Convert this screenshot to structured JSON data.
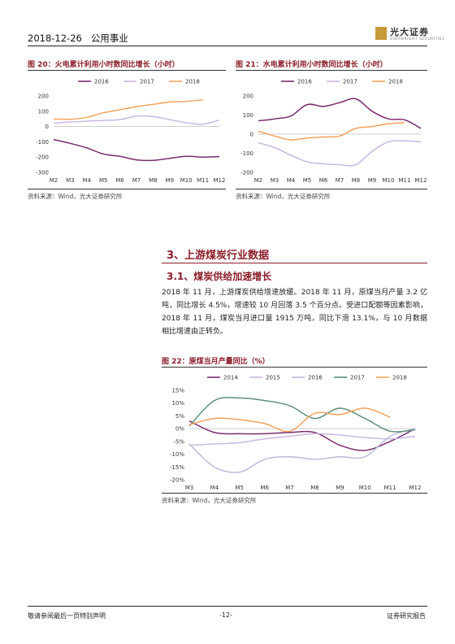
{
  "header": {
    "date": "2018-12-26",
    "sector": "公用事业",
    "logo_text": "光大证券",
    "logo_sub": "EVERBRIGHT SECURITIES"
  },
  "fig20": {
    "title": "图 20：火电累计利用小时数同比增长（小时）",
    "source": "资料来源：Wind，光大证券研究所"
  },
  "fig21": {
    "title": "图 21：水电累计利用小时数同比增长（小时）",
    "source": "资料来源：Wind，光大证券研究所"
  },
  "section": {
    "title": "3、上游煤炭行业数据",
    "subtitle": "3.1、煤炭供给加速增长",
    "paragraph": "2018 年 11 月，上游煤炭供给增速放缓。2018 年 11 月，原煤当月产量 3.2 亿吨，同比增长 4.5%，增速较 10 月回落 3.5 个百分点。受进口配额等因素影响，2018 年 11 月，煤炭当月进口量 1915 万吨，同比下滑 13.1%，与 10 月数据相比增速由正转负。"
  },
  "fig22": {
    "title": "图 22：原煤当月产量同比（%）",
    "source": "资料来源：Wind，光大证券研究所"
  },
  "footer": {
    "left": "敬请参阅最后一页特别声明",
    "center": "-12-",
    "right": "证券研究报告"
  },
  "colors": {
    "s2014": "#7b2d6e",
    "s2015": "#c9b8df",
    "s2016": "#b9bcd8",
    "s2017": "#5e8d7a",
    "s2018": "#f0a35a",
    "accent": "#8a1e2a"
  },
  "chart_data": [
    {
      "id": "fig20",
      "type": "line",
      "categories": [
        "M2",
        "M3",
        "M4",
        "M5",
        "M6",
        "M7",
        "M8",
        "M9",
        "M10",
        "M11",
        "M12"
      ],
      "ylim": [
        -300,
        200
      ],
      "yticks": [
        200,
        100,
        0,
        -100,
        -200,
        -300
      ],
      "legend_position": "top",
      "grid": false,
      "series": [
        {
          "name": "2016",
          "color": "#7b2d6e",
          "values": [
            -85,
            -110,
            -140,
            -180,
            -195,
            -218,
            -222,
            -208,
            -195,
            -200,
            -197
          ]
        },
        {
          "name": "2017",
          "color": "#c9b8df",
          "values": [
            20,
            30,
            35,
            40,
            45,
            68,
            65,
            45,
            25,
            15,
            42
          ]
        },
        {
          "name": "2018",
          "color": "#f0a35a",
          "values": [
            50,
            48,
            60,
            90,
            110,
            130,
            145,
            160,
            165,
            175,
            null
          ]
        }
      ]
    },
    {
      "id": "fig21",
      "type": "line",
      "categories": [
        "M2",
        "M3",
        "M4",
        "M5",
        "M6",
        "M7",
        "M8",
        "M9",
        "M10",
        "M11",
        "M12"
      ],
      "ylim": [
        -200,
        200
      ],
      "yticks": [
        200,
        100,
        0,
        -100,
        -200
      ],
      "legend_position": "top",
      "grid": false,
      "series": [
        {
          "name": "2016",
          "color": "#7b2d6e",
          "values": [
            70,
            80,
            95,
            155,
            145,
            165,
            185,
            120,
            80,
            75,
            30
          ]
        },
        {
          "name": "2017",
          "color": "#c9b8df",
          "values": [
            -45,
            -70,
            -110,
            -145,
            -155,
            -160,
            -160,
            -90,
            -40,
            -35,
            -40
          ]
        },
        {
          "name": "2018",
          "color": "#f0a35a",
          "values": [
            15,
            -10,
            -30,
            -20,
            -15,
            -10,
            30,
            40,
            55,
            60,
            null
          ]
        }
      ]
    },
    {
      "id": "fig22",
      "type": "line",
      "categories": [
        "M3",
        "M4",
        "M5",
        "M6",
        "M7",
        "M8",
        "M9",
        "M10",
        "M11",
        "M12"
      ],
      "ylim": [
        -20,
        15
      ],
      "yticks": [
        15,
        10,
        5,
        0,
        -5,
        -10,
        -15,
        -20
      ],
      "y_unit": "%",
      "legend_position": "top",
      "grid": false,
      "series": [
        {
          "name": "2014",
          "color": "#7b2d6e",
          "values": [
            3,
            -1.5,
            -2,
            -2,
            -1.5,
            -1.5,
            -6.5,
            -8.5,
            -5,
            0
          ]
        },
        {
          "name": "2015",
          "color": "#c9b8df",
          "values": [
            -6.5,
            -6,
            -5.5,
            -4,
            -3,
            -2,
            -2.5,
            -3.5,
            -4,
            -3
          ]
        },
        {
          "name": "2016",
          "color": "#b9bcd8",
          "values": [
            -6,
            -15,
            -17,
            -12,
            -11,
            -12,
            -11,
            -11,
            -3,
            0
          ]
        },
        {
          "name": "2017",
          "color": "#5e8d7a",
          "values": [
            1,
            11,
            12,
            11,
            9,
            4,
            8,
            4,
            -1,
            -0.5
          ]
        },
        {
          "name": "2018",
          "color": "#f0a35a",
          "values": [
            1.5,
            4,
            3.5,
            2,
            -1,
            6,
            5.5,
            8,
            4.5,
            null
          ]
        }
      ]
    }
  ]
}
